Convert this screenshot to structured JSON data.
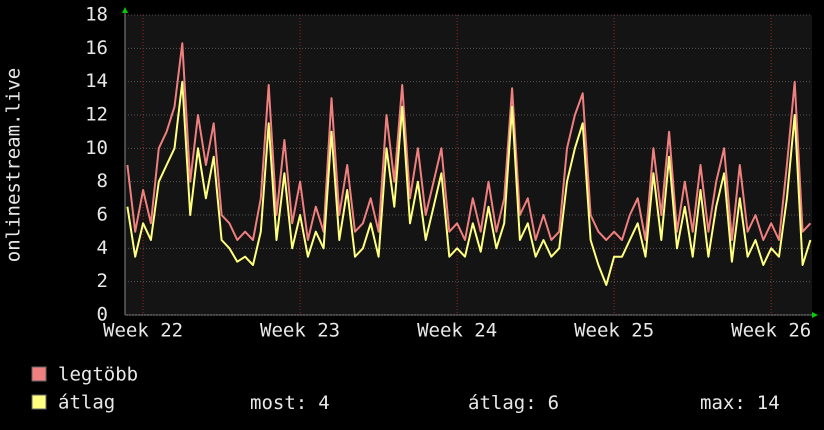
{
  "chart_data": {
    "type": "line",
    "ylabel": "onlinestream.live",
    "x": [
      21.9,
      21.95,
      22.0,
      22.05,
      22.1,
      22.15,
      22.2,
      22.25,
      22.3,
      22.35,
      22.4,
      22.45,
      22.5,
      22.55,
      22.6,
      22.65,
      22.7,
      22.75,
      22.8,
      22.85,
      22.9,
      22.95,
      23.0,
      23.05,
      23.1,
      23.15,
      23.2,
      23.25,
      23.3,
      23.35,
      23.4,
      23.45,
      23.5,
      23.55,
      23.6,
      23.65,
      23.7,
      23.75,
      23.8,
      23.85,
      23.9,
      23.95,
      24.0,
      24.05,
      24.1,
      24.15,
      24.2,
      24.25,
      24.3,
      24.35,
      24.4,
      24.45,
      24.5,
      24.55,
      24.6,
      24.65,
      24.7,
      24.75,
      24.8,
      24.85,
      24.9,
      24.95,
      25.0,
      25.05,
      25.1,
      25.15,
      25.2,
      25.25,
      25.3,
      25.35,
      25.4,
      25.45,
      25.5,
      25.55,
      25.6,
      25.65,
      25.7,
      25.75,
      25.8,
      25.85,
      25.9,
      25.95,
      26.0,
      26.05,
      26.1,
      26.15,
      26.2,
      26.25
    ],
    "series": [
      {
        "name": "legtöbb",
        "color": "#f07f7f",
        "values": [
          9,
          5,
          7.5,
          5.5,
          10,
          11,
          12.5,
          16.3,
          8,
          12,
          9,
          11.5,
          6,
          5.5,
          4.5,
          5,
          4.5,
          7,
          13.8,
          6,
          10.5,
          5.5,
          8,
          4.5,
          6.5,
          5,
          13,
          6,
          9,
          5,
          5.5,
          7,
          5,
          12,
          8,
          13.8,
          7,
          10,
          6,
          8,
          10,
          5,
          5.5,
          4.5,
          7,
          5,
          8,
          5,
          7,
          13.6,
          6,
          7,
          4.5,
          6,
          4.5,
          5,
          10,
          12,
          13.3,
          6,
          5,
          4.5,
          5,
          4.5,
          6,
          7,
          4.5,
          10,
          6,
          11,
          5,
          8,
          5,
          9,
          5,
          8,
          10,
          4.5,
          9,
          5,
          6,
          4.5,
          5.5,
          4.5,
          9,
          14,
          5,
          5.5
        ]
      },
      {
        "name": "átlag",
        "color": "#ffff80",
        "values": [
          6.5,
          3.5,
          5.5,
          4.5,
          8,
          9,
          10,
          14,
          6,
          10,
          7,
          9.5,
          4.5,
          4,
          3.2,
          3.5,
          3,
          5,
          11.5,
          4.5,
          8.5,
          4,
          6,
          3.5,
          5,
          4,
          11,
          4.5,
          7.5,
          3.5,
          4,
          5.5,
          3.5,
          10,
          6.5,
          12.5,
          5.5,
          8,
          4.5,
          6.5,
          8.5,
          3.5,
          4,
          3.5,
          5.5,
          3.8,
          6.5,
          4,
          5.5,
          12.5,
          4.5,
          5.5,
          3.5,
          4.5,
          3.5,
          4,
          8,
          10,
          11.5,
          4.5,
          3,
          1.8,
          3.5,
          3.5,
          4.5,
          5.5,
          3.5,
          8.5,
          4.5,
          9.5,
          4,
          6.5,
          3.5,
          7.5,
          3.5,
          6.5,
          8.5,
          3.2,
          7,
          3.5,
          4.5,
          3,
          4,
          3.5,
          7,
          12,
          3,
          4.5
        ]
      }
    ],
    "xlim": [
      21.885,
      26.26
    ],
    "xticks": [
      {
        "value": 22,
        "label": "Week 22"
      },
      {
        "value": 23,
        "label": "Week 23"
      },
      {
        "value": 24,
        "label": "Week 24"
      },
      {
        "value": 25,
        "label": "Week 25"
      },
      {
        "value": 26,
        "label": "Week 26"
      }
    ],
    "ylim": [
      0,
      18
    ],
    "yticks": [
      0,
      2,
      4,
      6,
      8,
      10,
      12,
      14,
      16,
      18
    ],
    "grid": true,
    "stats": [
      {
        "label": "most:",
        "value": 4
      },
      {
        "label": "átlag:",
        "value": 6
      },
      {
        "label": "max:",
        "value": 14
      }
    ]
  }
}
